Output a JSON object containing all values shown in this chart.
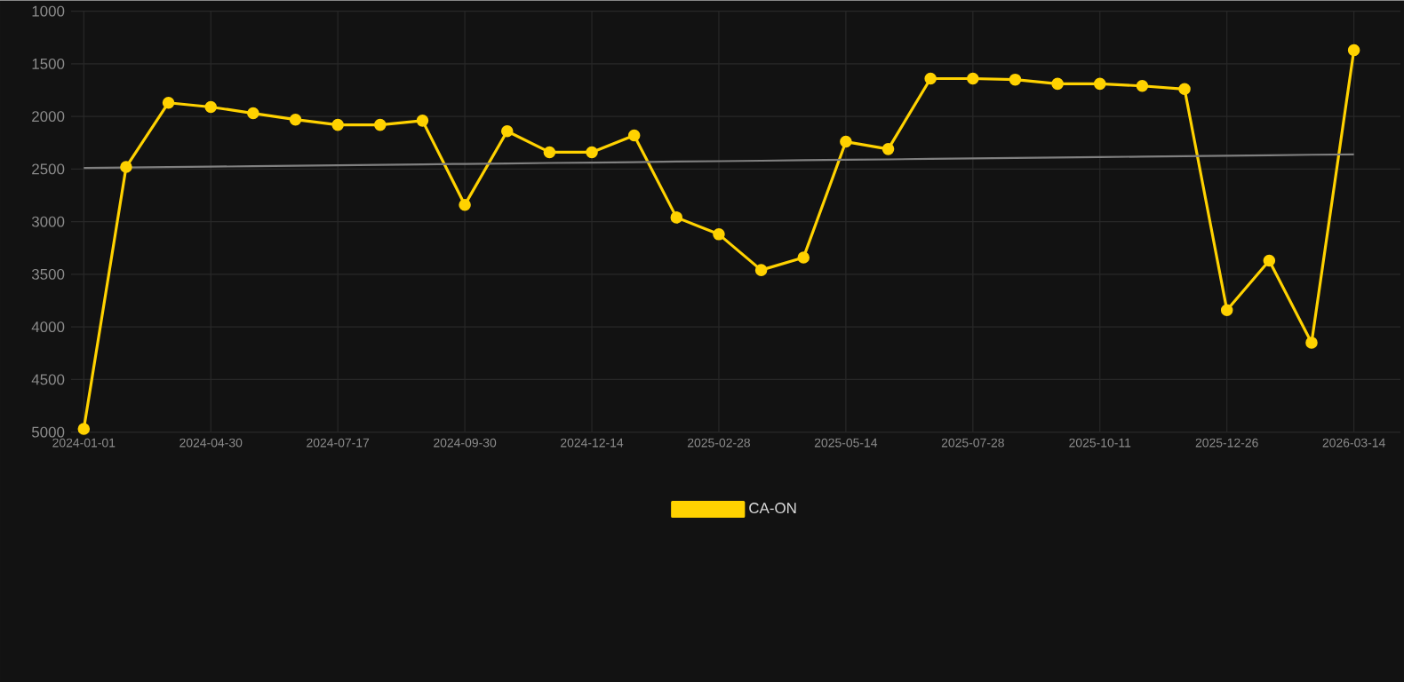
{
  "chart_data": {
    "type": "line",
    "categories": [
      "2024-01-01",
      null,
      null,
      "2024-04-30",
      null,
      null,
      "2024-07-17",
      null,
      null,
      "2024-09-30",
      null,
      null,
      "2024-12-14",
      null,
      null,
      "2025-02-28",
      null,
      null,
      "2025-05-14",
      null,
      null,
      "2025-07-28",
      null,
      null,
      "2025-10-11",
      null,
      null,
      "2025-12-26",
      null,
      null,
      "2026-03-14"
    ],
    "series": [
      {
        "name": "CA-ON",
        "color": "#ffd200",
        "marker": "circle",
        "values": [
          4970,
          2480,
          1870,
          1910,
          1970,
          2030,
          2080,
          2080,
          2040,
          2840,
          2140,
          2340,
          2340,
          2180,
          2960,
          3120,
          3460,
          3340,
          2240,
          2310,
          1640,
          1640,
          1650,
          1690,
          1690,
          1710,
          1740,
          3840,
          3370,
          4150,
          1370
        ]
      },
      {
        "type": "line",
        "color": "#7f7f7f",
        "marker": "none",
        "values": [
          2490,
          2486,
          2481,
          2477,
          2473,
          2468,
          2464,
          2460,
          2455,
          2451,
          2447,
          2442,
          2438,
          2434,
          2429,
          2425,
          2421,
          2416,
          2412,
          2408,
          2403,
          2399,
          2395,
          2390,
          2386,
          2382,
          2377,
          2373,
          2369,
          2364,
          2360
        ]
      }
    ],
    "ylim": [
      5000,
      1000
    ],
    "yticks": [
      1000,
      1500,
      2000,
      2500,
      3000,
      3500,
      4000,
      4500,
      5000
    ],
    "grid": true,
    "legend": "bottom"
  }
}
